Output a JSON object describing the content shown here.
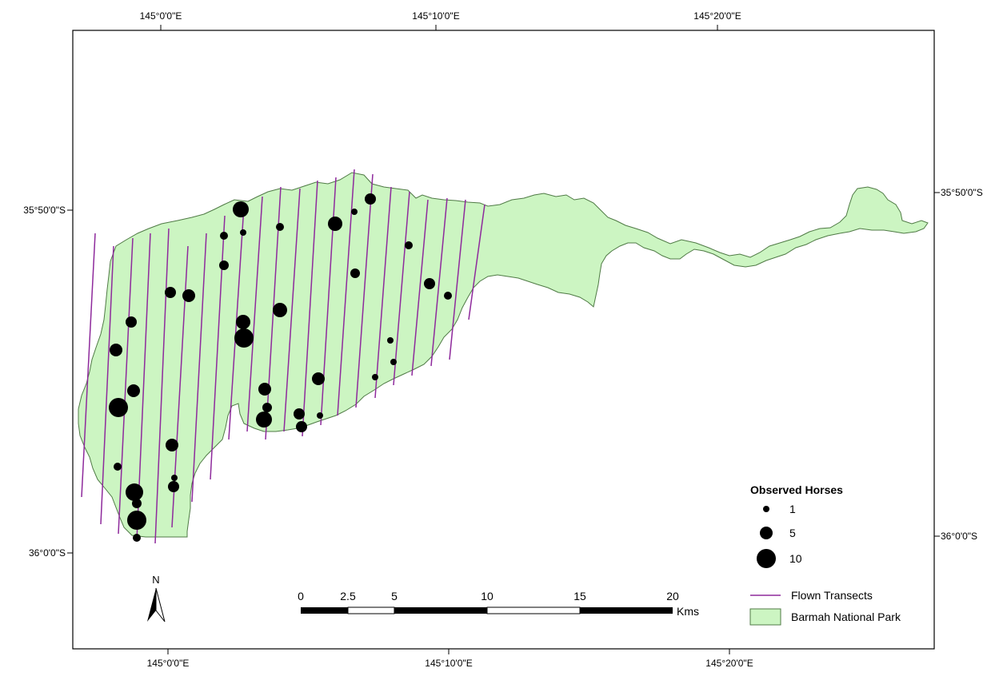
{
  "graticule": {
    "longitude_labels": [
      "145°0'0\"E",
      "145°10'0\"E",
      "145°20'0\"E"
    ],
    "latitude_labels": [
      "35°50'0\"S",
      "36°0'0\"S"
    ]
  },
  "park": {
    "name": "Barmah National Park",
    "fill_color": "#ccf5c2",
    "stroke_color": "#4f7a45"
  },
  "transects": {
    "label": "Flown Transects",
    "color": "#8e2a9c"
  },
  "observations": {
    "legend_title": "Observed Horses",
    "legend_sizes": [
      {
        "label": "1",
        "count": 1
      },
      {
        "label": "5",
        "count": 5
      },
      {
        "label": "10",
        "count": 10
      }
    ],
    "dot_color": "#000000"
  },
  "scale_bar": {
    "labels": [
      "0",
      "2.5",
      "5",
      "10",
      "15",
      "20"
    ],
    "unit": "Kms"
  },
  "north_arrow": {
    "label": "N"
  }
}
